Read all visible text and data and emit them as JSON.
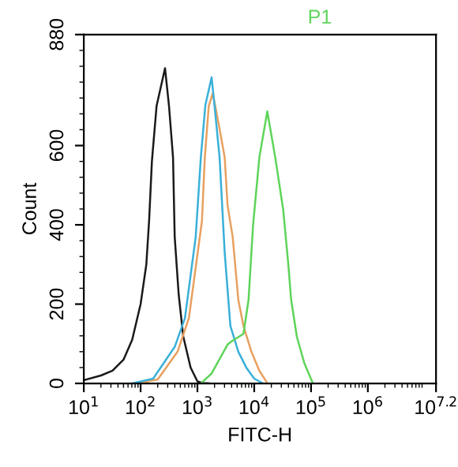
{
  "chart_data": {
    "type": "line",
    "xlabel": "FITC-H",
    "ylabel": "Count",
    "annotations": [
      "P1"
    ],
    "log": "x",
    "xlim": [
      10,
      15848932
    ],
    "xticks": [
      {
        "value": 10,
        "label": "10$^{1}$"
      },
      {
        "value": 100,
        "label": "10$^{2}$"
      },
      {
        "value": 1000,
        "label": "10$^{3}$"
      },
      {
        "value": 10000,
        "label": "10$^{4}$"
      },
      {
        "value": 100000,
        "label": "10$^{5}$"
      },
      {
        "value": 1000000,
        "label": "10$^{6}$"
      },
      {
        "value": 15848932,
        "label": "10$^{7.2}$"
      }
    ],
    "ylim": [
      0,
      880
    ],
    "yticks": [
      0,
      200,
      400,
      600,
      880
    ],
    "grid": false,
    "legend": false,
    "series": [
      {
        "color": "#1a1a1a",
        "x": [
          10,
          20,
          32,
          50,
          71,
          100,
          126,
          141,
          158,
          191,
          269,
          316,
          372,
          398,
          468,
          562,
          759,
          1000,
          1259,
          1585
        ],
        "values": [
          8,
          20,
          32,
          60,
          110,
          200,
          300,
          410,
          560,
          700,
          795,
          700,
          570,
          370,
          224,
          119,
          40,
          5,
          1,
          0
        ]
      },
      {
        "color": "#e8a060",
        "x": [
          89,
          200,
          447,
          708,
          1202,
          1349,
          1585,
          1862,
          2399,
          3020,
          3388,
          4169,
          5248,
          6457,
          8913,
          12303,
          16982
        ],
        "values": [
          0,
          10,
          80,
          165,
          410,
          570,
          700,
          732,
          650,
          570,
          450,
          370,
          211,
          145,
          80,
          32,
          1
        ]
      },
      {
        "color": "#3ab0d8",
        "x": [
          71,
          166,
          398,
          603,
          933,
          1148,
          1380,
          1778,
          1995,
          2455,
          3020,
          3802,
          5248,
          7244,
          10000,
          13804
        ],
        "values": [
          0,
          12,
          92,
          165,
          370,
          570,
          702,
          772,
          702,
          570,
          330,
          145,
          80,
          40,
          12,
          1
        ]
      },
      {
        "color": "#5ed45a",
        "x": [
          1148,
          1778,
          3388,
          4169,
          6457,
          7943,
          9550,
          12303,
          16982,
          23442,
          32359,
          39811,
          44668,
          56234,
          75858,
          107152
        ],
        "values": [
          0,
          25,
          98,
          108,
          125,
          211,
          400,
          570,
          686,
          570,
          438,
          300,
          211,
          118,
          52,
          1
        ]
      }
    ]
  }
}
